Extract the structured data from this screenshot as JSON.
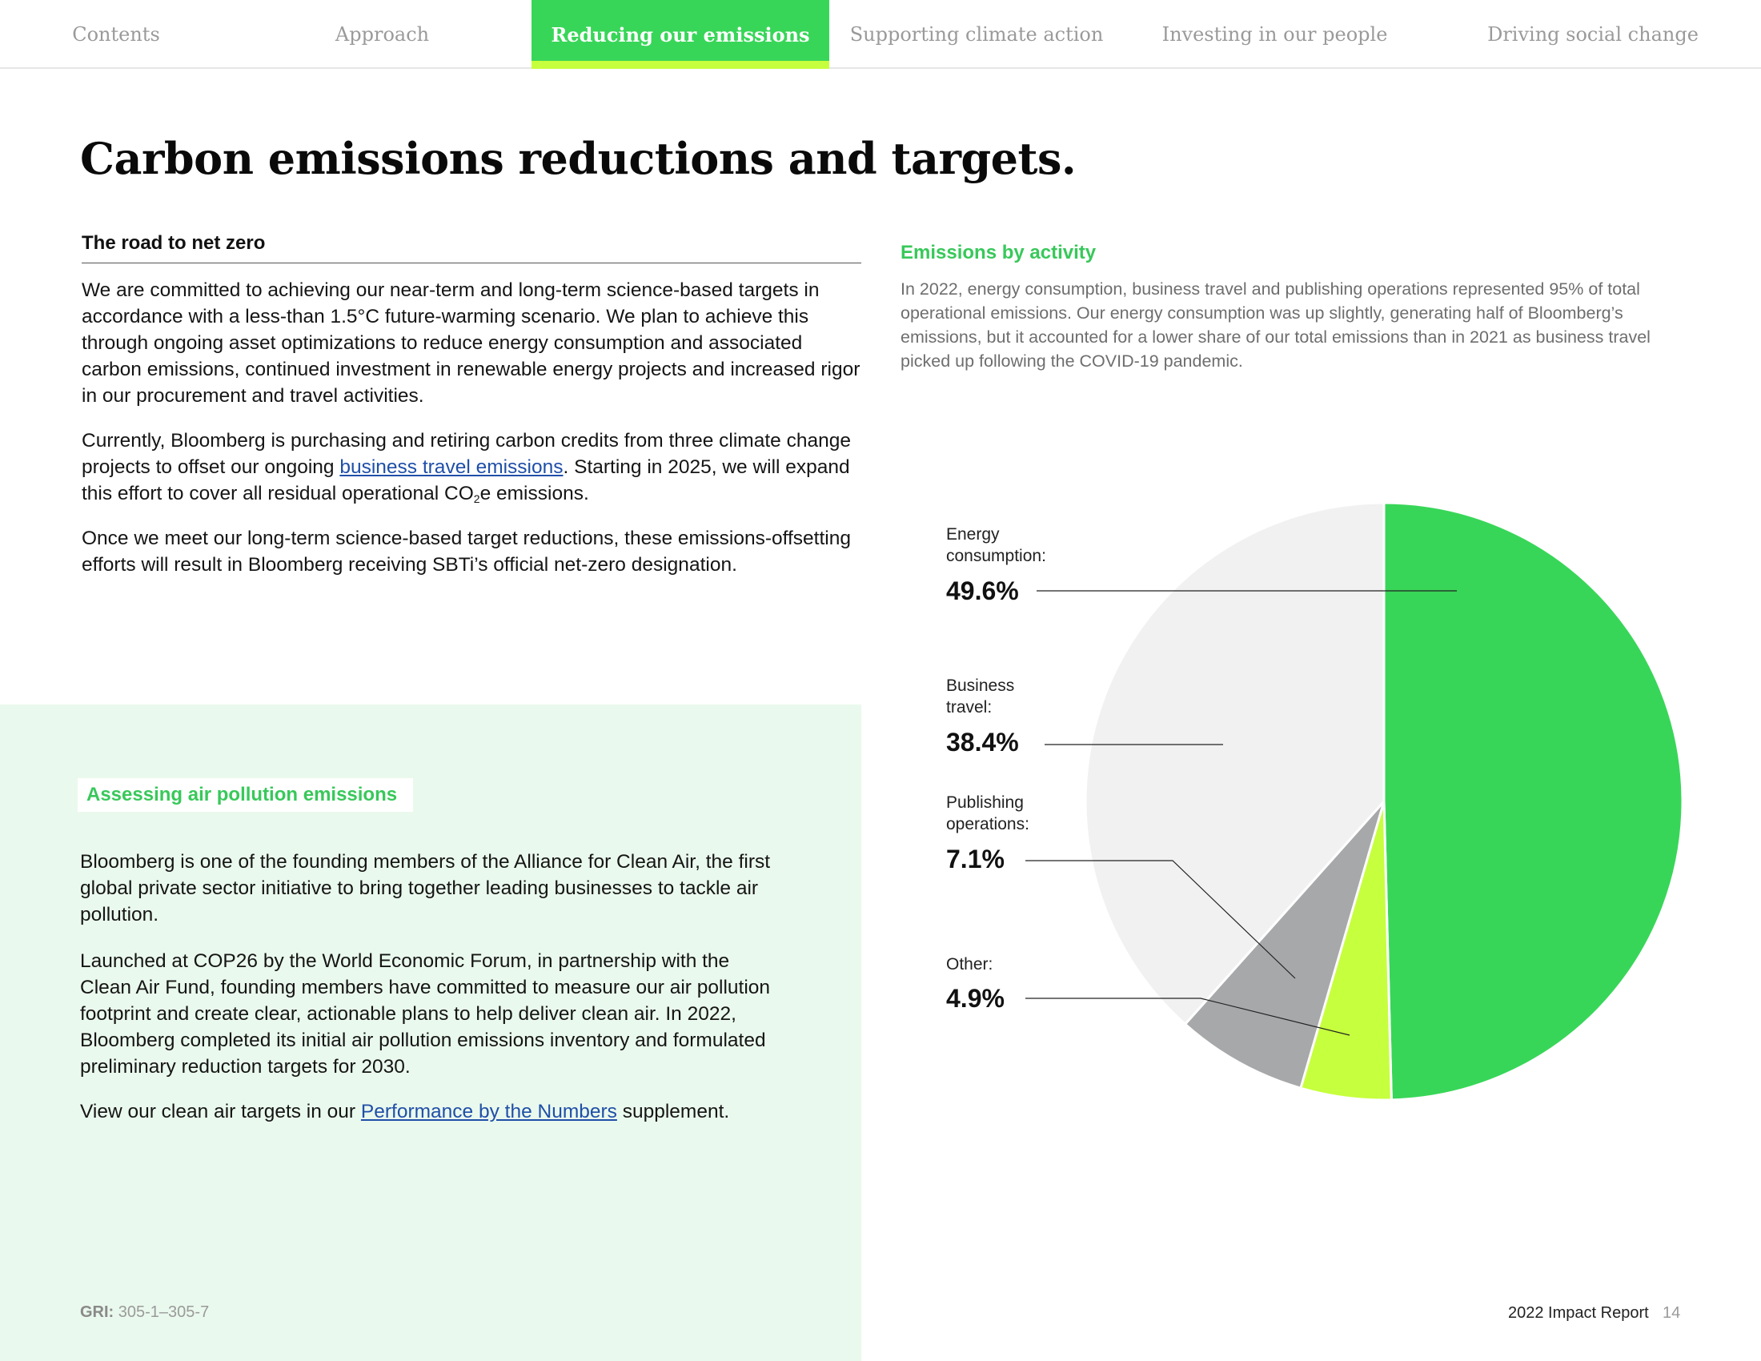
{
  "nav": {
    "tabs": [
      {
        "label": "Contents"
      },
      {
        "label": "Approach"
      },
      {
        "label": "Reducing our emissions",
        "active": true
      },
      {
        "label": "Supporting climate action"
      },
      {
        "label": "Investing in our people"
      },
      {
        "label": "Driving social change"
      }
    ]
  },
  "page": {
    "title": "Carbon emissions reductions and targets."
  },
  "road": {
    "heading": "The road to net zero",
    "para1": "We are committed to achieving our near-term and long-term science-based targets in accordance with a less-than 1.5°C future-warming scenario. We plan to achieve this through ongoing asset optimizations to reduce energy consumption and associated carbon emissions, continued investment in renewable energy projects and increased rigor in our procurement and travel activities.",
    "para2_a": "Currently, Bloomberg is purchasing and retiring carbon credits from three climate change projects to offset our ongoing ",
    "para2_link": "business travel emissions",
    "para2_b": ". Starting in 2025, we will expand this effort to cover all residual operational CO",
    "para2_sub": "2",
    "para2_c": "e emissions.",
    "para3": "Once we meet our long-term science-based target reductions, these emissions-offsetting efforts will result in Bloomberg receiving SBTi’s official net-zero designation."
  },
  "air": {
    "label": "Assessing air pollution emissions",
    "para1": "Bloomberg is one of the founding members of the Alliance for Clean Air, the first global private sector initiative to bring together leading businesses to tackle air pollution.",
    "para2": "Launched at COP26 by the World Economic Forum, in partnership with the Clean Air Fund, founding members have committed to measure our air pollution footprint and create clear, actionable plans to help deliver clean air. In 2022, Bloomberg completed its initial air pollution emissions inventory and formulated preliminary reduction targets for 2030.",
    "para3_a": "View our clean air targets in our ",
    "para3_link": "Performance by the Numbers",
    "para3_b": " supplement."
  },
  "emissions": {
    "heading": "Emissions by activity",
    "description": "In 2022, energy consumption, business travel and publishing operations represented 95% of total operational emissions. Our energy consumption was up slightly, generating half of Bloomberg’s emissions, but it accounted for a lower share of our total emissions than in 2021 as business travel picked up following the COVID-19 pandemic."
  },
  "chart_data": {
    "type": "pie",
    "title": "Emissions by activity",
    "unit": "%",
    "slices": [
      {
        "label": "Energy consumption:",
        "value": 49.6,
        "display": "49.6%",
        "color": "#38d658"
      },
      {
        "label": "Other:",
        "value": 4.9,
        "display": "4.9%",
        "color": "#c6ff3d"
      },
      {
        "label": "Publishing operations:",
        "value": 7.1,
        "display": "7.1%",
        "color": "#a7a8aa"
      },
      {
        "label": "Business travel:",
        "value": 38.4,
        "display": "38.4%",
        "color": "#f1f1f1"
      }
    ],
    "legend": "left"
  },
  "footer": {
    "gri_label": "GRI:",
    "gri_value": "305-1–305-7",
    "report_name": "2022 Impact Report",
    "page_number": "14"
  }
}
